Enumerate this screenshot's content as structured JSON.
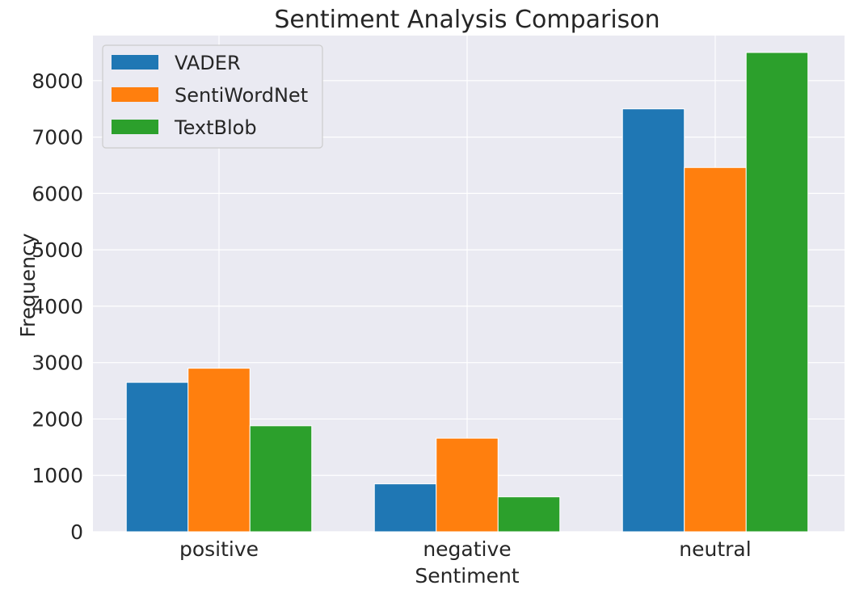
{
  "chart_data": {
    "type": "bar",
    "title": "Sentiment Analysis Comparison",
    "xlabel": "Sentiment",
    "ylabel": "Frequency",
    "categories": [
      "positive",
      "negative",
      "neutral"
    ],
    "series": [
      {
        "name": "VADER",
        "color": "#1f77b4",
        "values": [
          2650,
          850,
          7500
        ]
      },
      {
        "name": "SentiWordNet",
        "color": "#ff7f0e",
        "values": [
          2900,
          1660,
          6460
        ]
      },
      {
        "name": "TextBlob",
        "color": "#2ca02c",
        "values": [
          1880,
          620,
          8500
        ]
      }
    ],
    "ylim": [
      0,
      8800
    ],
    "yticks": [
      0,
      1000,
      2000,
      3000,
      4000,
      5000,
      6000,
      7000,
      8000
    ],
    "grid": true,
    "legend_position": "top-left",
    "background_color": "#eaeaf2"
  }
}
